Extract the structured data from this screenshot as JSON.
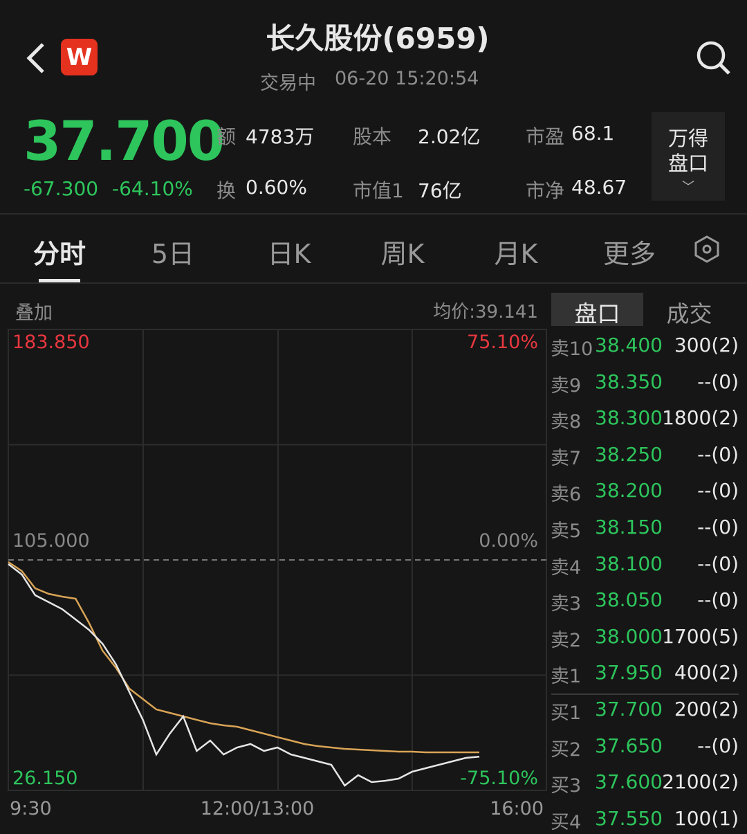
{
  "header": {
    "logo": "W",
    "title": "长久股份(6959)",
    "status": "交易中",
    "datetime": "06-20 15:20:54"
  },
  "quote": {
    "price": "37.700",
    "change": "-67.300",
    "change_pct": "-64.10%"
  },
  "stats": [
    {
      "label": "额",
      "value": "4783万"
    },
    {
      "label": "换",
      "value": "0.60%"
    },
    {
      "label": "股本",
      "value": "2.02亿"
    },
    {
      "label": "市值1",
      "value": "76亿"
    },
    {
      "label": "市盈",
      "value": "68.1"
    },
    {
      "label": "市净",
      "value": "48.67"
    }
  ],
  "wind_button": "万得盘口",
  "tabs": [
    "分时",
    "5日",
    "日K",
    "周K",
    "月K",
    "更多"
  ],
  "chart": {
    "overlay": "叠加",
    "avg_price": "均价:39.141",
    "ylim": [
      26.15,
      183.85
    ],
    "yticks": [
      {
        "value": 183.85,
        "label": "183.850"
      },
      {
        "value": 105,
        "label": "105.000"
      },
      {
        "value": 26.15,
        "label": "26.150"
      }
    ],
    "pct_ticks": [
      "75.10%",
      "0.00%",
      "-75.10%"
    ],
    "xticks": [
      "9:30",
      "12:00/13:00",
      "16:00"
    ],
    "series": [
      {
        "color": "#e6e6e6",
        "values": [
          103.57,
          100.02,
          92.92,
          90.55,
          88.18,
          84.63,
          81.08,
          76.34,
          69.24,
          59.77,
          50.29,
          38.45,
          45.56,
          51.48,
          39.64,
          43.19,
          38.45,
          40.82,
          42.01,
          39.64,
          40.82,
          38.45,
          37.27,
          36.09,
          34.9,
          27.8,
          31.35,
          28.98,
          29.45,
          30.17,
          32.53,
          33.72,
          34.9,
          36.09,
          37.27,
          37.7
        ]
      },
      {
        "color": "#d9a456",
        "values": [
          104.29,
          101.21,
          95.29,
          93.39,
          92.45,
          91.73,
          83.45,
          73.97,
          68.05,
          60.95,
          57.4,
          53.85,
          52.66,
          51.48,
          50.29,
          49.11,
          48.4,
          47.93,
          46.74,
          45.56,
          44.37,
          43.19,
          42.01,
          41.3,
          40.82,
          40.35,
          40.11,
          39.88,
          39.64,
          39.4,
          39.4,
          39.17,
          39.17,
          39.17,
          39.17,
          39.17
        ]
      }
    ]
  },
  "orderbook": {
    "tabs": [
      "盘口",
      "成交"
    ],
    "sell": [
      [
        "卖10",
        "38.400",
        "300(2)"
      ],
      [
        "卖9",
        "38.350",
        "--(0)"
      ],
      [
        "卖8",
        "38.300",
        "1800(2)"
      ],
      [
        "卖7",
        "38.250",
        "--(0)"
      ],
      [
        "卖6",
        "38.200",
        "--(0)"
      ],
      [
        "卖5",
        "38.150",
        "--(0)"
      ],
      [
        "卖4",
        "38.100",
        "--(0)"
      ],
      [
        "卖3",
        "38.050",
        "--(0)"
      ],
      [
        "卖2",
        "38.000",
        "1700(5)"
      ],
      [
        "卖1",
        "37.950",
        "400(2)"
      ]
    ],
    "buy": [
      [
        "买1",
        "37.700",
        "200(2)"
      ],
      [
        "买2",
        "37.650",
        "--(0)"
      ],
      [
        "买3",
        "37.600",
        "2100(2)"
      ],
      [
        "买4",
        "37.550",
        "100(1)"
      ]
    ]
  }
}
